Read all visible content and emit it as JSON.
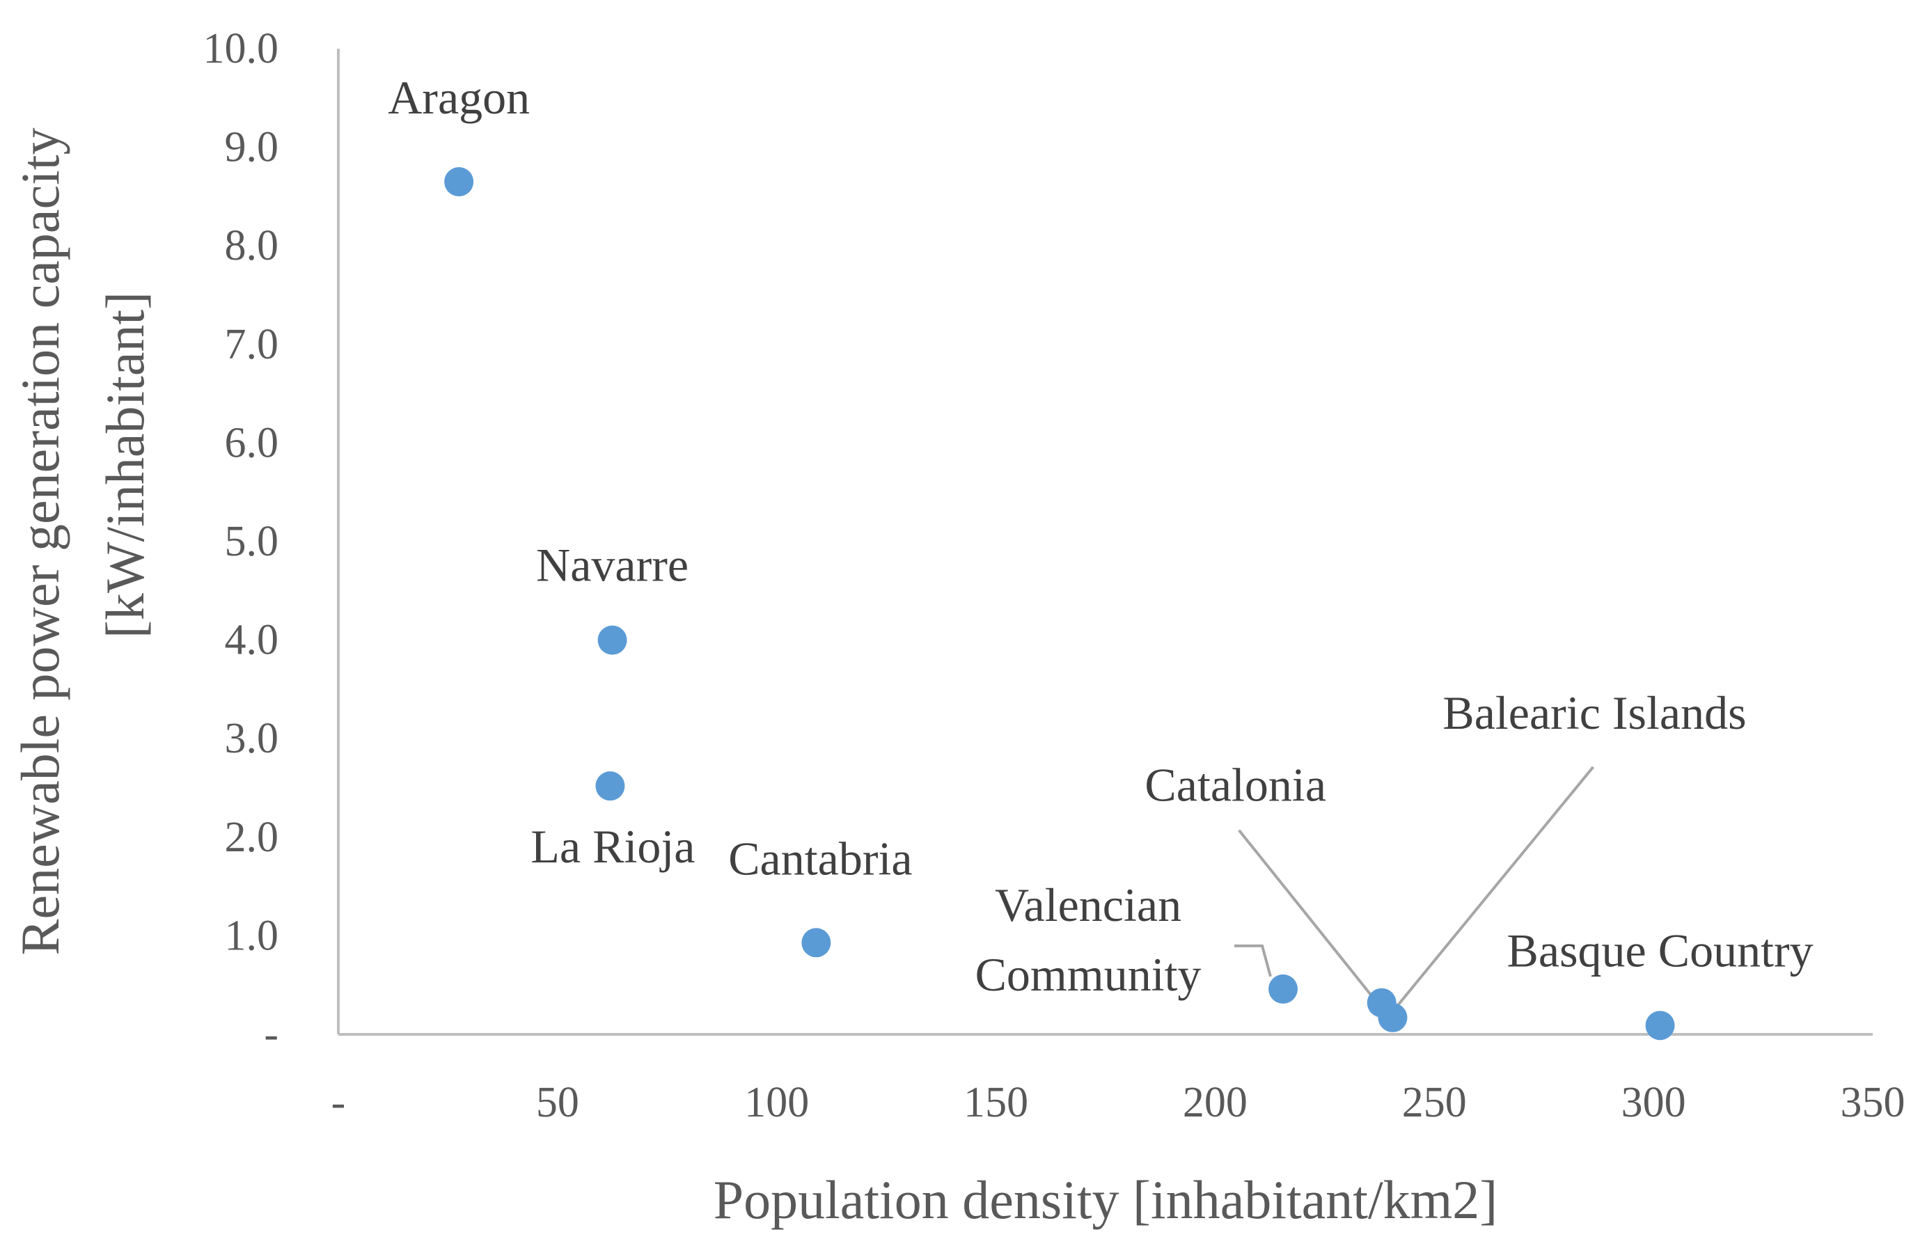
{
  "chart_data": {
    "type": "scatter",
    "title": "",
    "xlabel": "Population density [inhabitant/km2]",
    "ylabel_lines": [
      "Renewable power generation capacity",
      "[kW/inhabitant]"
    ],
    "xlim": [
      0,
      350
    ],
    "ylim": [
      0,
      10
    ],
    "x_ticks": [
      0,
      50,
      100,
      150,
      200,
      250,
      300,
      350
    ],
    "x_tick_labels": [
      "-",
      "50",
      "100",
      "150",
      "200",
      "250",
      "300",
      "350"
    ],
    "y_ticks": [
      0,
      1,
      2,
      3,
      4,
      5,
      6,
      7,
      8,
      9,
      10
    ],
    "y_tick_labels": [
      "-",
      "1.0",
      "2.0",
      "3.0",
      "4.0",
      "5.0",
      "6.0",
      "7.0",
      "8.0",
      "9.0",
      "10.0"
    ],
    "grid": false,
    "legend": "none",
    "marker_color": "#5b9bd5",
    "points": [
      {
        "label": "Aragon",
        "x": 27.5,
        "y": 8.65
      },
      {
        "label": "Navarre",
        "x": 62.5,
        "y": 4.0
      },
      {
        "label": "La Rioja",
        "x": 62.0,
        "y": 2.52
      },
      {
        "label": "Cantabria",
        "x": 109.0,
        "y": 0.93
      },
      {
        "label": "Valencian Community",
        "x": 215.5,
        "y": 0.46
      },
      {
        "label": "Catalonia",
        "x": 238.0,
        "y": 0.32
      },
      {
        "label": "Balearic Islands",
        "x": 240.5,
        "y": 0.17
      },
      {
        "label": "Basque Country",
        "x": 301.5,
        "y": 0.09
      }
    ]
  }
}
